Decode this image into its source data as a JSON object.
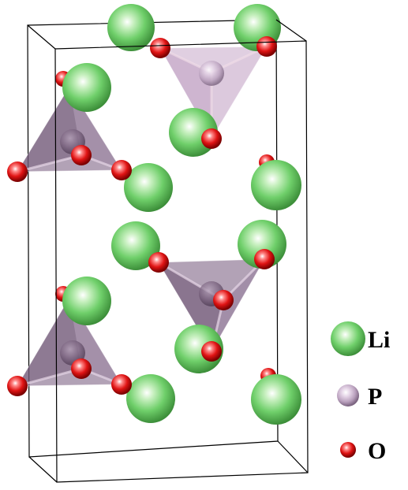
{
  "legend": {
    "items": [
      {
        "label": "Li",
        "element": "lithium",
        "color": "#6ccf6c"
      },
      {
        "label": "P",
        "element": "phosphorus",
        "color": "#c9b3cc"
      },
      {
        "label": "O",
        "element": "oxygen",
        "color": "#e01010"
      }
    ]
  },
  "colors": {
    "li_sphere": "#6ccf6c",
    "p_sphere": "#c9b3cc",
    "o_sphere": "#e01010",
    "tetrahedron_fill": "#8e7596",
    "cell_edge": "#000000"
  }
}
